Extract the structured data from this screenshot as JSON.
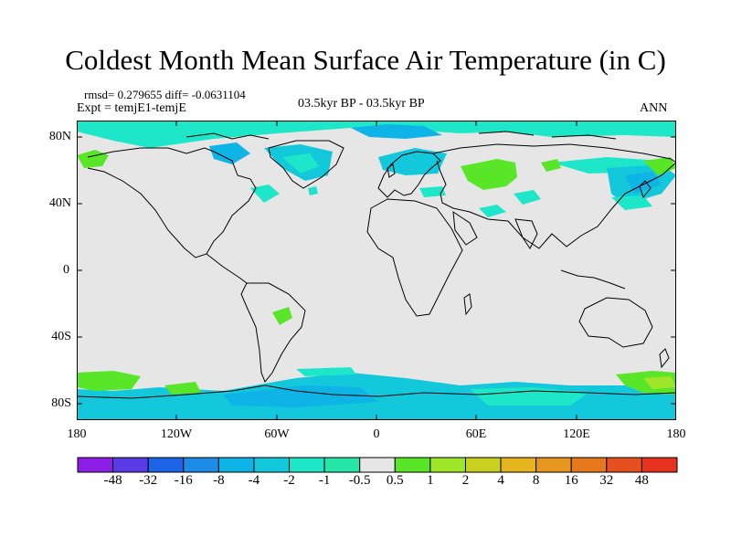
{
  "title": "Coldest Month Mean Surface Air Temperature (in C)",
  "rmsd_text": "rmsd= 0.279655 diff= -0.0631104",
  "expt_text": "Expt = temjE1-temjE",
  "period_text": "03.5kyr BP - 03.5kyr BP",
  "season_text": "ANN",
  "lat_labels": [
    "80N",
    "40N",
    "0",
    "40S",
    "80S"
  ],
  "lon_labels": [
    "180",
    "120W",
    "60W",
    "0",
    "60E",
    "120E",
    "180"
  ],
  "colorbar": {
    "labels": [
      "-48",
      "-32",
      "-16",
      "-8",
      "-4",
      "-2",
      "-1",
      "-0.5",
      "0.5",
      "1",
      "2",
      "4",
      "8",
      "16",
      "32",
      "48"
    ],
    "colors": [
      "#8c1ee6",
      "#5a3ce6",
      "#1e64e6",
      "#1e8ce6",
      "#0fb4e6",
      "#14c8dc",
      "#1ee6c8",
      "#28e6a8",
      "#e6e6e6",
      "#5ae628",
      "#a0e628",
      "#c8d21e",
      "#e6b41e",
      "#e6961e",
      "#e6781e",
      "#e6501e",
      "#e6321e"
    ]
  },
  "map_colors": {
    "background": "#e6e6e6",
    "neg_small": "#1ee6c8",
    "neg_medium": "#14c8dc",
    "neg_large": "#0fb4e6",
    "pos_small": "#5ae628",
    "pos_medium": "#a0e628"
  }
}
